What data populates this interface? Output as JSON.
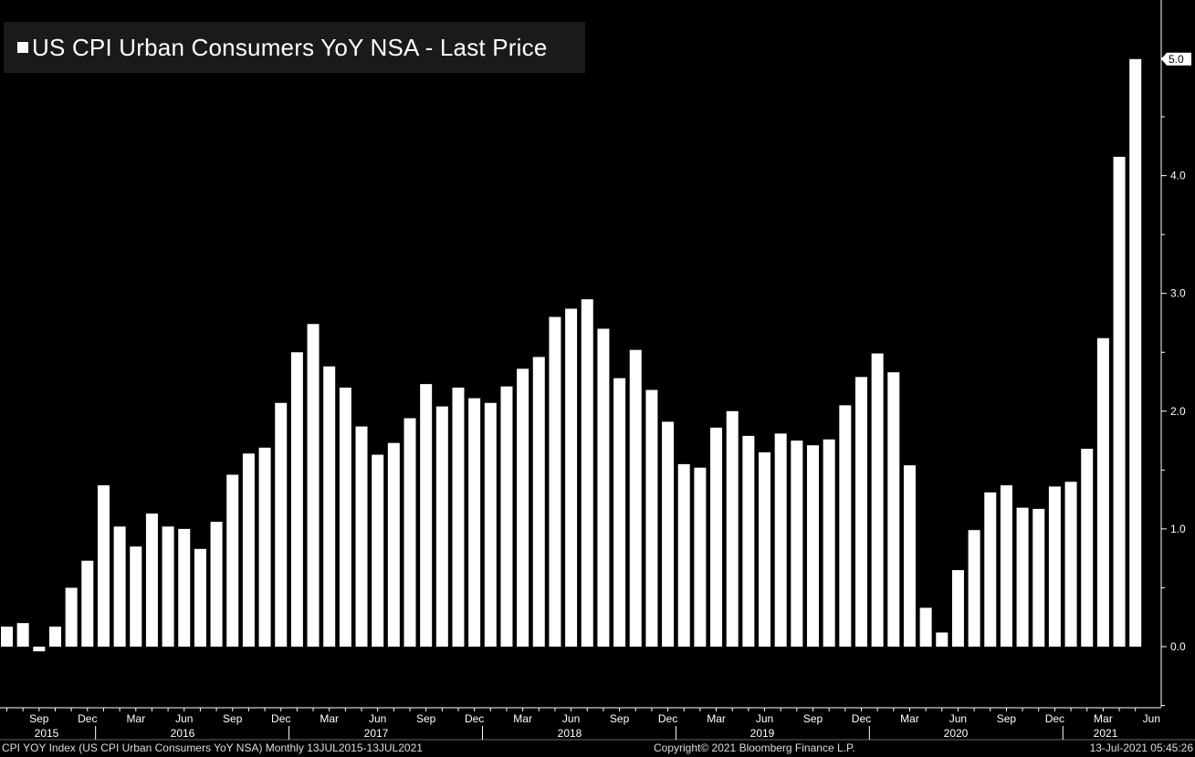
{
  "chart_data": {
    "type": "bar",
    "title": "US CPI Urban Consumers YoY NSA - Last Price",
    "series_name": "US CPI Urban Consumers YoY NSA - Last Price",
    "last_value_label": "5.0",
    "y_ticks": [
      "0.0",
      "1.0",
      "2.0",
      "3.0",
      "4.0",
      "5.0"
    ],
    "ylim": [
      -0.5,
      5.5
    ],
    "grid": false,
    "legend_position": "top-left",
    "bar_color": "#ffffff",
    "background_color": "#000000",
    "x_month_labels": [
      "Sep",
      "Dec",
      "Mar",
      "Jun",
      "Sep",
      "Dec",
      "Mar",
      "Jun",
      "Sep",
      "Dec",
      "Mar",
      "Jun",
      "Sep",
      "Dec",
      "Mar",
      "Jun",
      "Sep",
      "Dec",
      "Mar",
      "Jun",
      "Sep",
      "Dec",
      "Mar",
      "Jun"
    ],
    "x_year_labels": [
      "2015",
      "2016",
      "2017",
      "2018",
      "2019",
      "2020",
      "2021"
    ],
    "categories": [
      "Jul 2015",
      "Aug 2015",
      "Sep 2015",
      "Oct 2015",
      "Nov 2015",
      "Dec 2015",
      "Jan 2016",
      "Feb 2016",
      "Mar 2016",
      "Apr 2016",
      "May 2016",
      "Jun 2016",
      "Jul 2016",
      "Aug 2016",
      "Sep 2016",
      "Oct 2016",
      "Nov 2016",
      "Dec 2016",
      "Jan 2017",
      "Feb 2017",
      "Mar 2017",
      "Apr 2017",
      "May 2017",
      "Jun 2017",
      "Jul 2017",
      "Aug 2017",
      "Sep 2017",
      "Oct 2017",
      "Nov 2017",
      "Dec 2017",
      "Jan 2018",
      "Feb 2018",
      "Mar 2018",
      "Apr 2018",
      "May 2018",
      "Jun 2018",
      "Jul 2018",
      "Aug 2018",
      "Sep 2018",
      "Oct 2018",
      "Nov 2018",
      "Dec 2018",
      "Jan 2019",
      "Feb 2019",
      "Mar 2019",
      "Apr 2019",
      "May 2019",
      "Jun 2019",
      "Jul 2019",
      "Aug 2019",
      "Sep 2019",
      "Oct 2019",
      "Nov 2019",
      "Dec 2019",
      "Jan 2020",
      "Feb 2020",
      "Mar 2020",
      "Apr 2020",
      "May 2020",
      "Jun 2020",
      "Jul 2020",
      "Aug 2020",
      "Sep 2020",
      "Oct 2020",
      "Nov 2020",
      "Dec 2020",
      "Jan 2021",
      "Feb 2021",
      "Mar 2021",
      "Apr 2021",
      "May 2021"
    ],
    "values": [
      0.17,
      0.2,
      -0.04,
      0.17,
      0.5,
      0.73,
      1.37,
      1.02,
      0.85,
      1.13,
      1.02,
      1.0,
      0.83,
      1.06,
      1.46,
      1.64,
      1.69,
      2.07,
      2.5,
      2.74,
      2.38,
      2.2,
      1.87,
      1.63,
      1.73,
      1.94,
      2.23,
      2.04,
      2.2,
      2.11,
      2.07,
      2.21,
      2.36,
      2.46,
      2.8,
      2.87,
      2.95,
      2.7,
      2.28,
      2.52,
      2.18,
      1.91,
      1.55,
      1.52,
      1.86,
      2.0,
      1.79,
      1.65,
      1.81,
      1.75,
      1.71,
      1.76,
      2.05,
      2.29,
      2.49,
      2.33,
      1.54,
      0.33,
      0.12,
      0.65,
      0.99,
      1.31,
      1.37,
      1.18,
      1.17,
      1.36,
      1.4,
      1.68,
      2.62,
      4.16,
      4.99
    ]
  },
  "footer": {
    "left": "CPI YOY Index (US CPI Urban Consumers YoY NSA)  Monthly 13JUL2015-13JUL2021",
    "center": "Copyright© 2021 Bloomberg Finance L.P.",
    "right": "13-Jul-2021 05:45:26"
  }
}
